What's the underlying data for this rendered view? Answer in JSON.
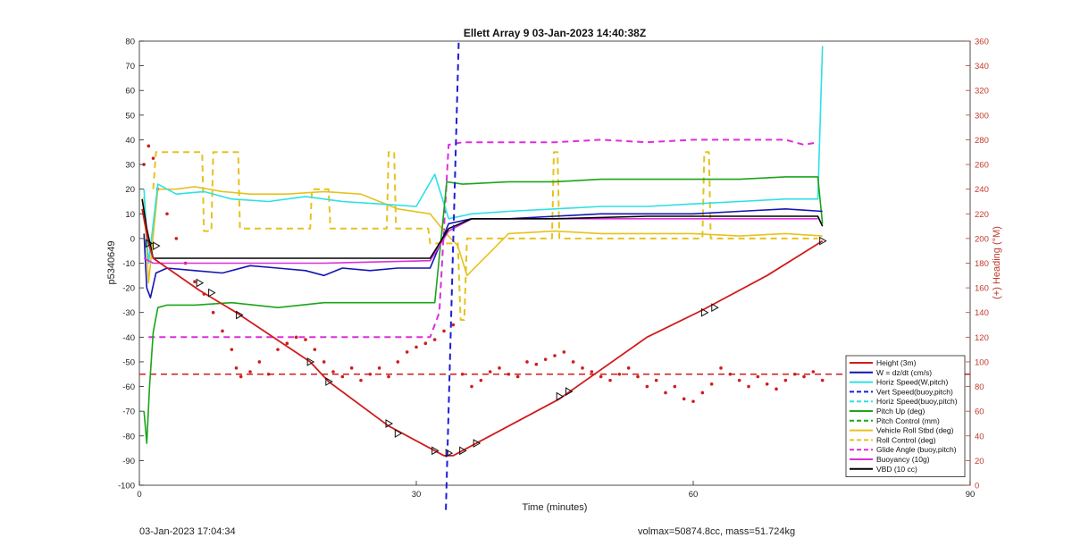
{
  "footer": {
    "timestamp": "03-Jan-2023 17:04:34",
    "summary": "volmax=50874.8cc, mass=51.724kg"
  },
  "colors": {
    "height": "#d01c1c",
    "w": "#1414b4",
    "hspeed": "#2de0e6",
    "vspeed_buoy": "#1d1dd8",
    "hspeed_buoy": "#2de0e6",
    "pitch": "#1aa51a",
    "pitch_ctrl": "#1aa51a",
    "roll": "#e6c21e",
    "roll_ctrl": "#e6c21e",
    "glide": "#dd2ddd",
    "buoyancy": "#dd2ddd",
    "vbd": "#000000",
    "heading": "#d01c1c",
    "right_axis": "#c0392b"
  },
  "chart_data": {
    "type": "line",
    "title": "Ellett Array 9 03-Jan-2023 14:40:38Z",
    "xlabel": "Time (minutes)",
    "ylabel": "p5340649",
    "ylabel_right": "(+) Heading (°M)",
    "xlim": [
      0,
      90
    ],
    "ylim": [
      -100,
      80
    ],
    "ylim_right": [
      0,
      360
    ],
    "xticks": [
      0,
      30,
      60,
      90
    ],
    "yticks": [
      -100,
      -90,
      -80,
      -70,
      -60,
      -50,
      -40,
      -30,
      -20,
      -10,
      0,
      10,
      20,
      30,
      40,
      50,
      60,
      70,
      80
    ],
    "yticks_right": [
      0,
      20,
      40,
      60,
      80,
      100,
      120,
      140,
      160,
      180,
      200,
      220,
      240,
      260,
      280,
      300,
      320,
      340,
      360
    ],
    "grid": false,
    "legend_position": "bottom-right",
    "series": [
      {
        "name": "Height (3m)",
        "key": "height",
        "style": "solid",
        "x": [
          0.3,
          1,
          1.5,
          6.5,
          10.5,
          18.5,
          20.5,
          27,
          33,
          34,
          35.5,
          45.5,
          55,
          61,
          68,
          74
        ],
        "y": [
          12,
          -2,
          -8,
          -21,
          -30,
          -50,
          -58,
          -76,
          -88,
          -88,
          -85,
          -65,
          -40,
          -29,
          -15,
          -1
        ]
      },
      {
        "name": "W = dz/dt (cm/s)",
        "key": "w",
        "style": "solid",
        "x": [
          0.5,
          0.8,
          1.2,
          1.8,
          3,
          6,
          9,
          12,
          15,
          18,
          20,
          22,
          25,
          28,
          31.5,
          33.5,
          36,
          40,
          45,
          50,
          55,
          60,
          65,
          70,
          74
        ],
        "y": [
          2,
          -20,
          -24,
          -14,
          -12,
          -13,
          -14,
          -11,
          -12,
          -13,
          -15,
          -12,
          -13,
          -12,
          -12,
          6,
          8,
          8,
          9,
          10,
          10,
          10,
          11,
          12,
          11
        ]
      },
      {
        "name": "Horiz Speed(W,pitch)",
        "key": "hspeed",
        "style": "solid",
        "x": [
          0.5,
          1,
          2,
          4,
          7,
          10,
          14,
          18,
          22,
          26,
          30,
          32,
          33.5,
          36,
          40,
          45,
          50,
          55,
          60,
          65,
          70,
          73.5,
          74
        ],
        "y": [
          20,
          -10,
          22,
          18,
          19,
          16,
          15,
          17,
          15,
          14,
          13,
          26,
          8,
          10,
          11,
          12,
          13,
          13,
          14,
          15,
          16,
          16,
          78
        ]
      },
      {
        "name": "Vert Speed(buoy,pitch)",
        "key": "vspeed_buoy",
        "style": "dashed",
        "x": [
          33.2,
          34.6
        ],
        "y": [
          -110,
          80
        ]
      },
      {
        "name": "Horiz Speed(buoy,pitch)",
        "key": "hspeed_buoy",
        "style": "dashed",
        "x": [],
        "y": []
      },
      {
        "name": "Pitch Up (deg)",
        "key": "pitch",
        "style": "solid",
        "x": [
          0.5,
          0.8,
          1.1,
          1.5,
          2,
          3,
          6,
          10,
          15,
          20,
          25,
          32,
          33.3,
          35,
          40,
          45,
          50,
          55,
          60,
          65,
          70,
          73.5,
          74
        ],
        "y": [
          -70,
          -83,
          -60,
          -38,
          -28,
          -27,
          -27,
          -26,
          -28,
          -26,
          -26,
          -26,
          23,
          22,
          23,
          23,
          24,
          24,
          24,
          24,
          25,
          25,
          6
        ]
      },
      {
        "name": "Pitch Control (mm)",
        "key": "pitch_ctrl",
        "style": "dashed",
        "x": [],
        "y": []
      },
      {
        "name": "Vehicle Roll Stbd (deg)",
        "key": "roll",
        "style": "solid",
        "x": [
          0.5,
          1,
          2,
          4,
          6,
          9,
          12,
          16,
          20,
          24,
          28,
          31.5,
          33,
          34.5,
          35.5,
          40,
          45,
          50,
          55,
          60,
          65,
          70,
          74
        ],
        "y": [
          17,
          -18,
          20,
          20,
          21,
          19,
          18,
          18,
          19,
          18,
          12,
          10,
          3,
          -3,
          -15,
          2,
          3,
          2,
          2,
          2,
          1,
          2,
          1
        ]
      },
      {
        "name": "Roll Control (deg)",
        "key": "roll_ctrl",
        "style": "dashed",
        "x": [
          1.5,
          1.8,
          2.1,
          6.8,
          7.0,
          7.8,
          8.0,
          10.7,
          10.9,
          18.5,
          18.7,
          20.5,
          20.7,
          26.8,
          27.0,
          27.6,
          27.8,
          31.3,
          31.5,
          34.5,
          34.8,
          35.2,
          35.5,
          44.7,
          44.9,
          45.3,
          45.5,
          61.0,
          61.2,
          61.7,
          61.9,
          73.5
        ],
        "y": [
          20,
          35,
          35,
          35,
          3,
          3,
          35,
          35,
          4,
          4,
          20,
          20,
          4,
          4,
          35,
          35,
          4,
          4,
          -2,
          -2,
          -33,
          -33,
          0,
          0,
          35,
          35,
          0,
          0,
          35,
          35,
          0,
          0
        ]
      },
      {
        "name": "Glide Angle (buoy,pitch)",
        "key": "glide",
        "style": "dashed",
        "x": [
          1,
          2,
          5,
          10,
          15,
          20,
          25,
          31.5,
          32.5,
          33.5,
          35,
          40,
          45,
          50,
          55,
          60,
          65,
          70,
          72,
          73.5
        ],
        "y": [
          -40,
          -40,
          -40,
          -40,
          -40,
          -40,
          -40,
          -40,
          -30,
          38,
          39,
          39,
          39,
          40,
          39,
          40,
          40,
          40,
          38,
          39
        ]
      },
      {
        "name": "Buoyancy (10g)",
        "key": "buoyancy",
        "style": "solid",
        "x": [
          0.5,
          1.5,
          10,
          20,
          31.5,
          33.5,
          36,
          45,
          55,
          65,
          73.5
        ],
        "y": [
          -8,
          -10,
          -10,
          -10,
          -9,
          3,
          8,
          8,
          8,
          8,
          8
        ]
      },
      {
        "name": "VBD (10 cc)",
        "key": "vbd",
        "style": "solid",
        "x": [
          0.3,
          0.8,
          1.5,
          10,
          20,
          31.5,
          33.5,
          36,
          45,
          55,
          65,
          73.5,
          74
        ],
        "y": [
          16,
          4,
          -8,
          -8,
          -8,
          -8,
          4,
          8,
          8,
          9,
          9,
          9,
          5
        ]
      }
    ],
    "heading_points": {
      "name": "Heading",
      "key": "heading",
      "x": [
        0.5,
        1,
        1.5,
        2,
        3,
        4,
        5,
        6,
        7,
        8,
        9,
        10,
        10.5,
        11,
        12,
        13,
        14,
        15,
        16,
        17,
        18,
        19,
        20,
        21,
        22,
        23,
        24,
        25,
        26,
        27,
        28,
        29,
        30,
        31,
        32,
        33,
        34,
        35,
        36,
        37,
        38,
        39,
        40,
        41,
        42,
        43,
        44,
        45,
        46,
        47,
        48,
        49,
        50,
        51,
        52,
        53,
        54,
        55,
        56,
        57,
        58,
        59,
        60,
        61,
        62,
        63,
        64,
        65,
        66,
        67,
        68,
        69,
        70,
        71,
        72,
        73,
        74
      ],
      "y": [
        260,
        275,
        265,
        240,
        220,
        200,
        180,
        165,
        155,
        140,
        125,
        110,
        95,
        88,
        92,
        100,
        90,
        110,
        115,
        120,
        118,
        110,
        100,
        92,
        88,
        95,
        85,
        90,
        95,
        88,
        100,
        108,
        112,
        115,
        118,
        125,
        130,
        90,
        80,
        85,
        92,
        95,
        90,
        88,
        100,
        98,
        102,
        105,
        108,
        100,
        95,
        92,
        88,
        85,
        90,
        95,
        88,
        80,
        85,
        75,
        80,
        70,
        68,
        75,
        82,
        95,
        90,
        85,
        80,
        88,
        82,
        78,
        85,
        90,
        88,
        92,
        85
      ]
    },
    "heading_reference": {
      "key": "heading",
      "style": "dashed",
      "y_right": 90
    },
    "markers": {
      "key": "height",
      "x": [
        1,
        1.8,
        6.5,
        7.8,
        10.8,
        18.5,
        20.5,
        27,
        28,
        32,
        33.5,
        35,
        36.5,
        45.5,
        46.5,
        61.2,
        62.3,
        74
      ],
      "y": [
        -2,
        -3,
        -18,
        -22,
        -31,
        -50,
        -58,
        -75,
        -79,
        -86,
        -87,
        -86,
        -83,
        -64,
        -62,
        -30,
        -28,
        -1
      ]
    }
  }
}
